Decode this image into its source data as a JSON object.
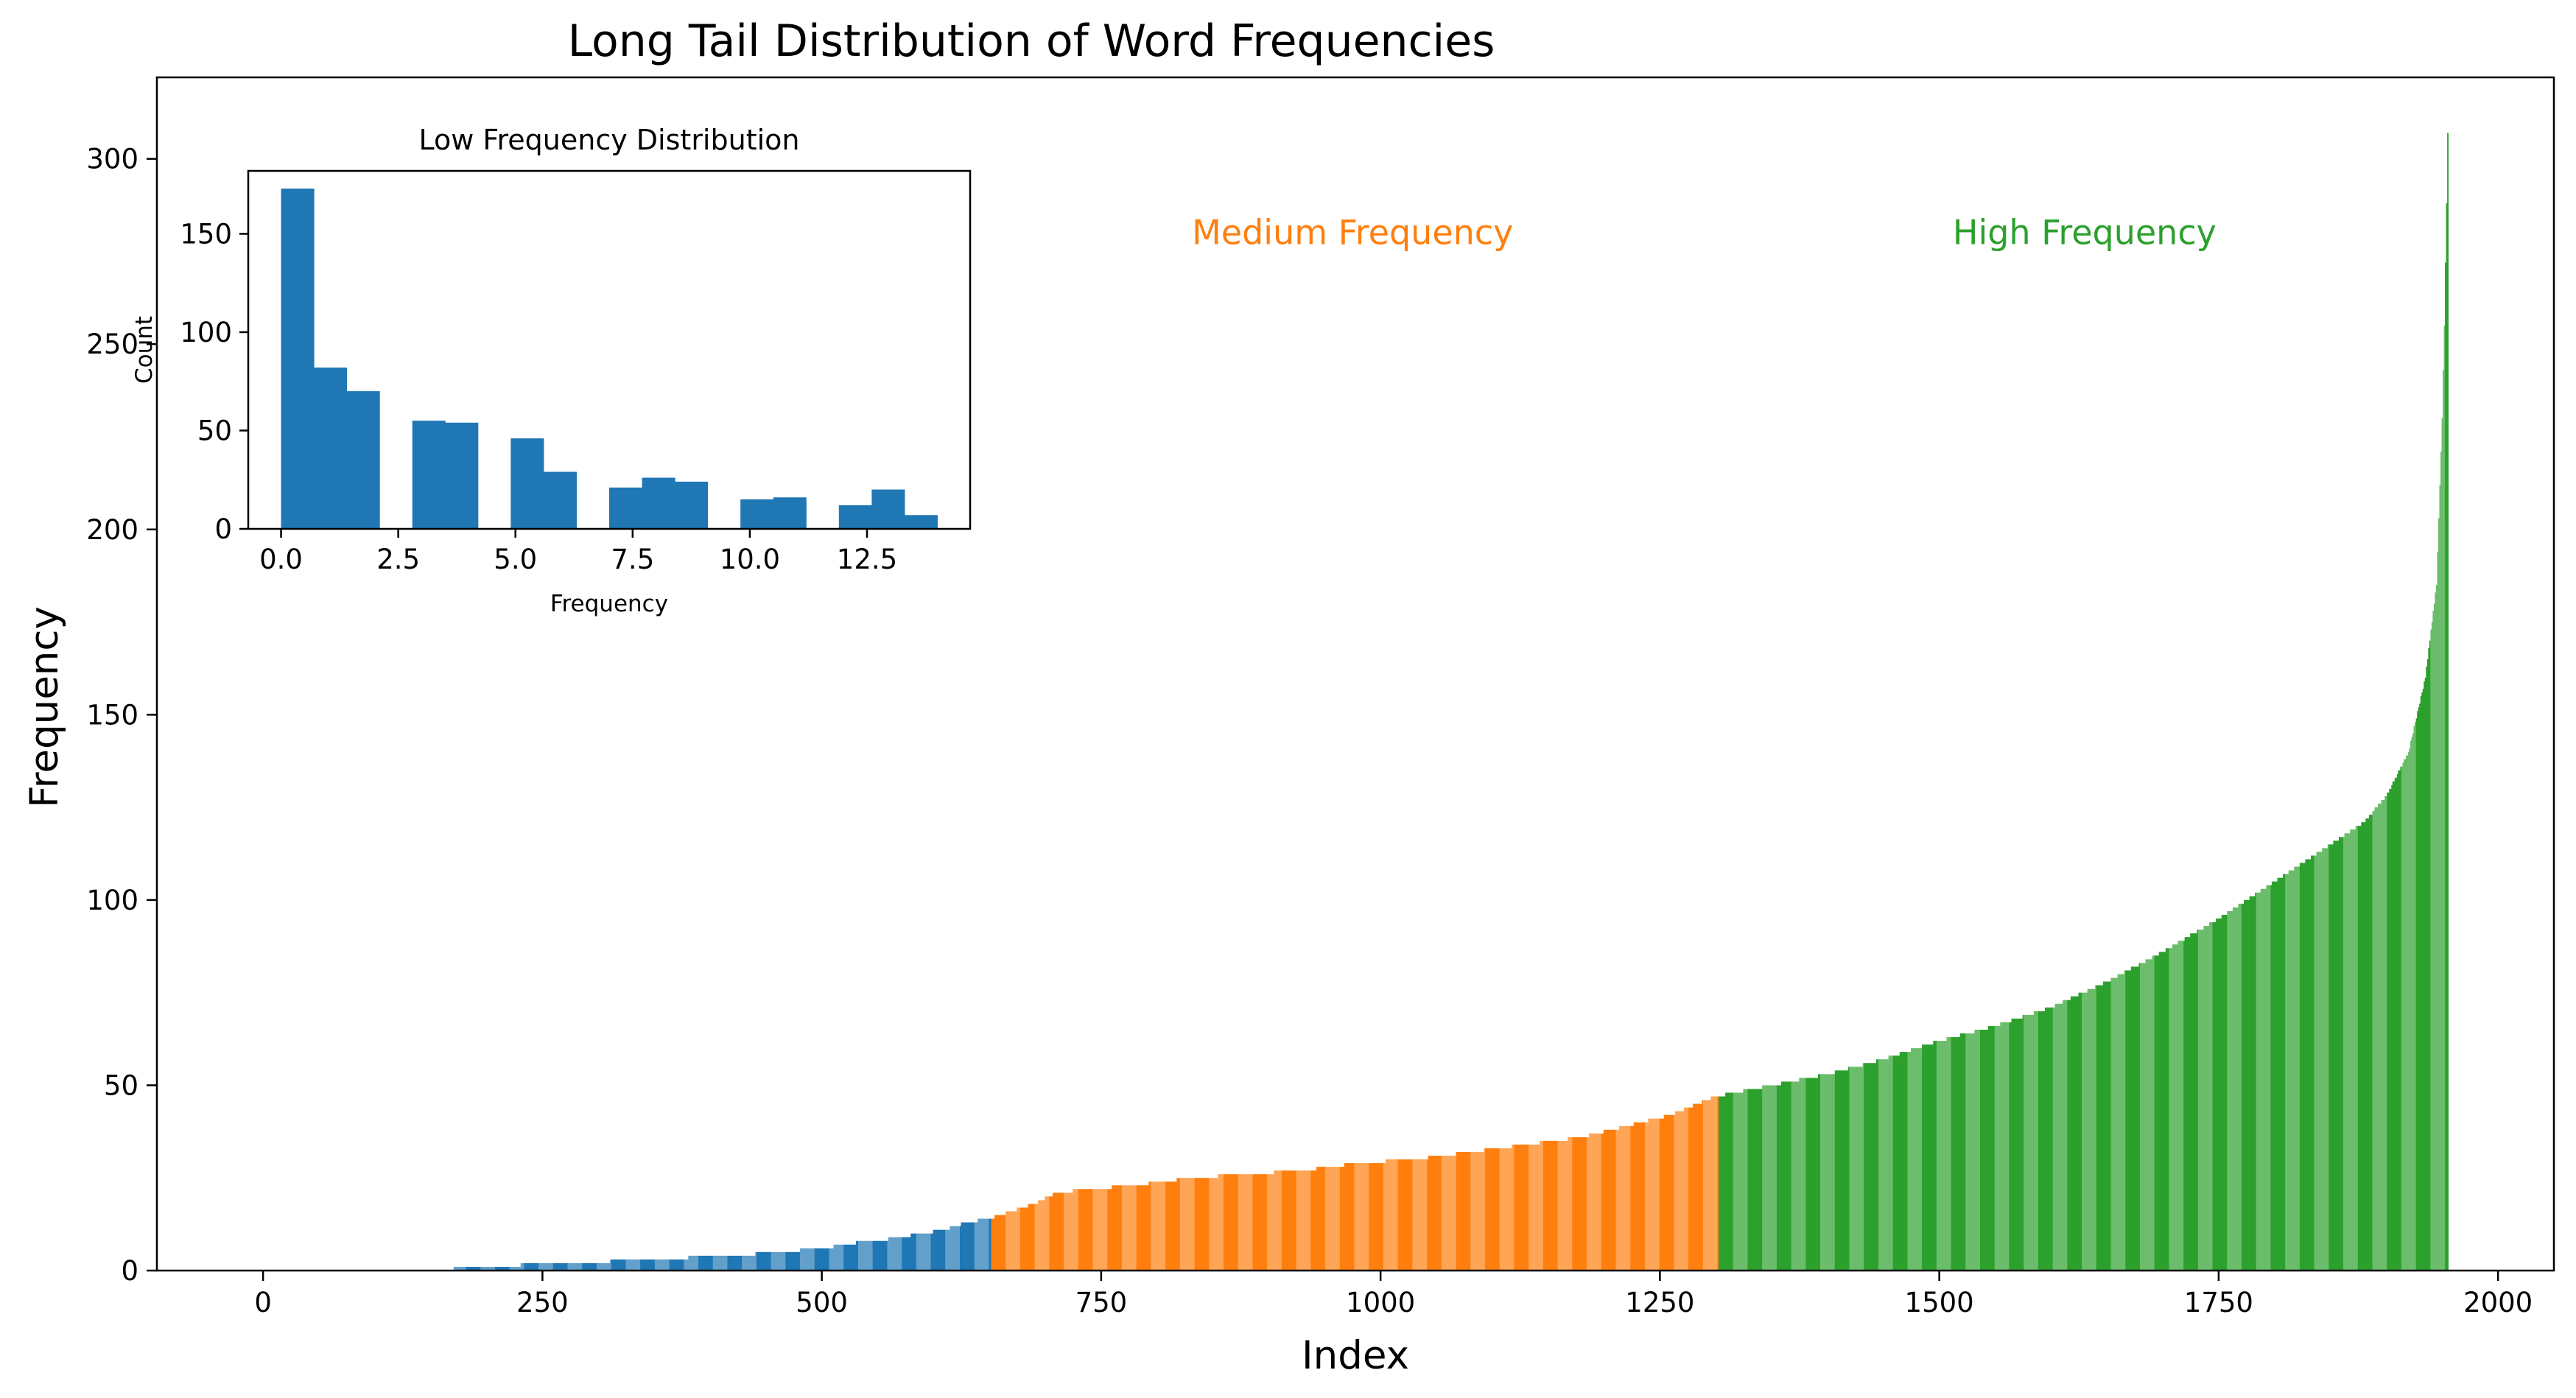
{
  "colors": {
    "low": "#1f77b4",
    "medium": "#ff7f0e",
    "high": "#2ca02c"
  },
  "chart_data": [
    {
      "type": "bar",
      "title": "Long Tail Distribution of Word Frequencies",
      "xlabel": "Index",
      "ylabel": "Frequency",
      "xlim": [
        -95,
        2050
      ],
      "ylim": [
        0,
        322
      ],
      "x_ticks": [
        0,
        250,
        500,
        750,
        1000,
        1250,
        1500,
        1750,
        2000
      ],
      "y_ticks": [
        0,
        50,
        100,
        150,
        200,
        250,
        300
      ],
      "grid": false,
      "n_items": 1955,
      "curve_points": [
        [
          0,
          0
        ],
        [
          170,
          0
        ],
        [
          171,
          1
        ],
        [
          230,
          1
        ],
        [
          231,
          2
        ],
        [
          310,
          2
        ],
        [
          311,
          3
        ],
        [
          380,
          3
        ],
        [
          381,
          4
        ],
        [
          440,
          4
        ],
        [
          441,
          5
        ],
        [
          480,
          5
        ],
        [
          481,
          6
        ],
        [
          510,
          6
        ],
        [
          511,
          7
        ],
        [
          530,
          7
        ],
        [
          531,
          8
        ],
        [
          550,
          8
        ],
        [
          570,
          9
        ],
        [
          590,
          10
        ],
        [
          610,
          11
        ],
        [
          630,
          13
        ],
        [
          650,
          14
        ],
        [
          670,
          16
        ],
        [
          690,
          18
        ],
        [
          710,
          21
        ],
        [
          740,
          22
        ],
        [
          780,
          23
        ],
        [
          830,
          25
        ],
        [
          880,
          26
        ],
        [
          930,
          27
        ],
        [
          980,
          29
        ],
        [
          1030,
          30
        ],
        [
          1080,
          32
        ],
        [
          1130,
          34
        ],
        [
          1180,
          36
        ],
        [
          1220,
          39
        ],
        [
          1260,
          42
        ],
        [
          1300,
          47
        ],
        [
          1350,
          50
        ],
        [
          1400,
          53
        ],
        [
          1450,
          57
        ],
        [
          1500,
          62
        ],
        [
          1550,
          66
        ],
        [
          1600,
          71
        ],
        [
          1650,
          78
        ],
        [
          1700,
          86
        ],
        [
          1750,
          95
        ],
        [
          1800,
          105
        ],
        [
          1850,
          115
        ],
        [
          1880,
          121
        ],
        [
          1900,
          128
        ],
        [
          1920,
          140
        ],
        [
          1935,
          160
        ],
        [
          1945,
          185
        ],
        [
          1950,
          230
        ],
        [
          1952,
          255
        ],
        [
          1954,
          288
        ],
        [
          1955,
          307
        ]
      ],
      "segments": [
        {
          "start": 0,
          "end": 651,
          "color_key": "low"
        },
        {
          "start": 652,
          "end": 1302,
          "color_key": "medium"
        },
        {
          "start": 1303,
          "end": 1955,
          "color_key": "high"
        }
      ],
      "annotations": [
        {
          "text": "Medium Frequency",
          "x": 975,
          "y": 280,
          "color_key": "medium"
        },
        {
          "text": "High Frequency",
          "x": 1630,
          "y": 280,
          "color_key": "high"
        }
      ]
    },
    {
      "type": "bar",
      "title": "Low Frequency Distribution",
      "xlabel": "Frequency",
      "ylabel": "Count",
      "xlim": [
        -0.7,
        14.7
      ],
      "ylim": [
        0,
        182
      ],
      "x_ticks": [
        0.0,
        2.5,
        5.0,
        7.5,
        10.0,
        12.5
      ],
      "x_tick_labels": [
        "0.0",
        "2.5",
        "5.0",
        "7.5",
        "10.0",
        "12.5"
      ],
      "y_ticks": [
        0,
        50,
        100,
        150
      ],
      "bin_edges": [
        0.0,
        0.7,
        1.4,
        2.1,
        2.8,
        3.5,
        4.2,
        4.9,
        5.6,
        6.3,
        7.0,
        7.7,
        8.4,
        9.1,
        9.8,
        10.5,
        11.2,
        11.9,
        12.6,
        13.3,
        14.0
      ],
      "counts": [
        173,
        82,
        70,
        0,
        55,
        54,
        0,
        46,
        29,
        0,
        21,
        26,
        24,
        0,
        15,
        16,
        0,
        12,
        20,
        7
      ],
      "color_key": "low"
    }
  ]
}
